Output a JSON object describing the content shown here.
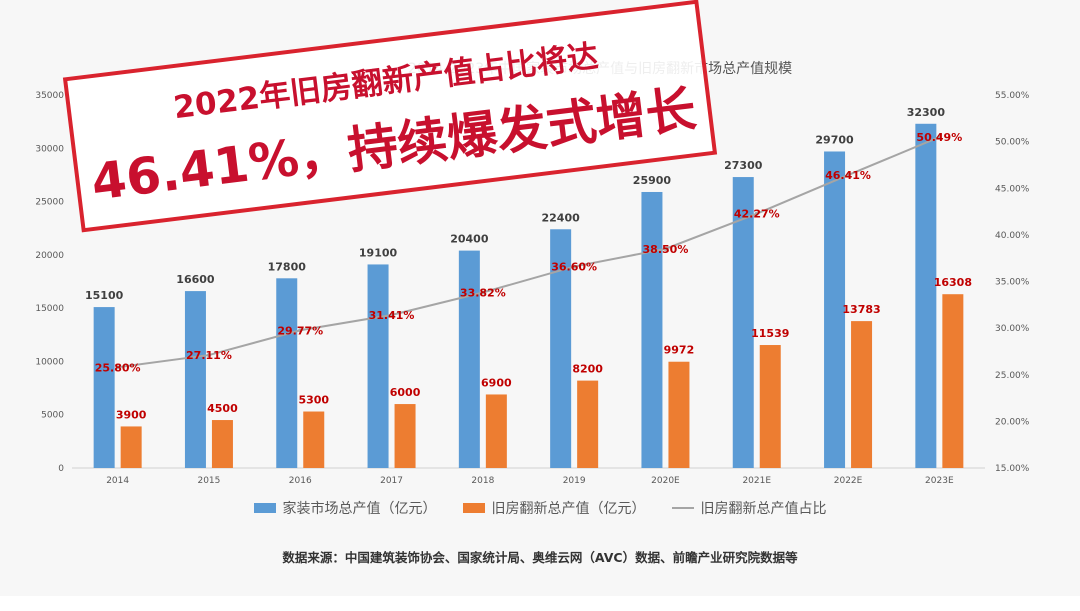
{
  "chart_data": {
    "type": "bar",
    "title": "2014-2023年中国家装市场总产值与旧房翻新市场总产值规模",
    "categories": [
      "2014",
      "2015",
      "2016",
      "2017",
      "2018",
      "2019",
      "2020E",
      "2021E",
      "2022E",
      "2023E"
    ],
    "series": [
      {
        "name": "家装市场总产值（亿元）",
        "type": "bar",
        "axis": "left",
        "color": "#5b9bd5",
        "values": [
          15100,
          16600,
          17800,
          19100,
          20400,
          22400,
          25900,
          27300,
          29700,
          32300
        ],
        "label_color": "#404040"
      },
      {
        "name": "旧房翻新总产值（亿元）",
        "type": "bar",
        "axis": "left",
        "color": "#ed7d31",
        "values": [
          3900,
          4500,
          5300,
          6000,
          6900,
          8200,
          9972,
          11539,
          13783,
          16308
        ],
        "label_color": "#c00000"
      },
      {
        "name": "旧房翻新总产值占比",
        "type": "line",
        "axis": "right",
        "color": "#a5a5a5",
        "values": [
          25.8,
          27.11,
          29.77,
          31.41,
          33.82,
          36.6,
          38.5,
          42.27,
          46.41,
          50.49
        ],
        "labels": [
          "25.80%",
          "27.11%",
          "29.77%",
          "31.41%",
          "33.82%",
          "36.60%",
          "38.50%",
          "42.27%",
          "46.41%",
          "50.49%"
        ],
        "label_color": "#c00000"
      }
    ],
    "y_left": {
      "min": 0,
      "max": 35000,
      "ticks": [
        "0",
        "5000",
        "10000",
        "15000",
        "20000",
        "25000",
        "30000",
        "35000"
      ]
    },
    "y_right": {
      "min": 15,
      "max": 55,
      "ticks": [
        "15.00%",
        "20.00%",
        "25.00%",
        "30.00%",
        "35.00%",
        "40.00%",
        "45.00%",
        "50.00%",
        "55.00%"
      ]
    },
    "grid": false,
    "legend": "bottom"
  },
  "stamp": {
    "line1": "2022年旧房翻新产值占比将达",
    "line2": "46.41%，持续爆发式增长",
    "color": "#c8102e"
  },
  "source_note": "数据来源：中国建筑装饰协会、国家统计局、奥维云网（AVC）数据、前瞻产业研究院数据等"
}
